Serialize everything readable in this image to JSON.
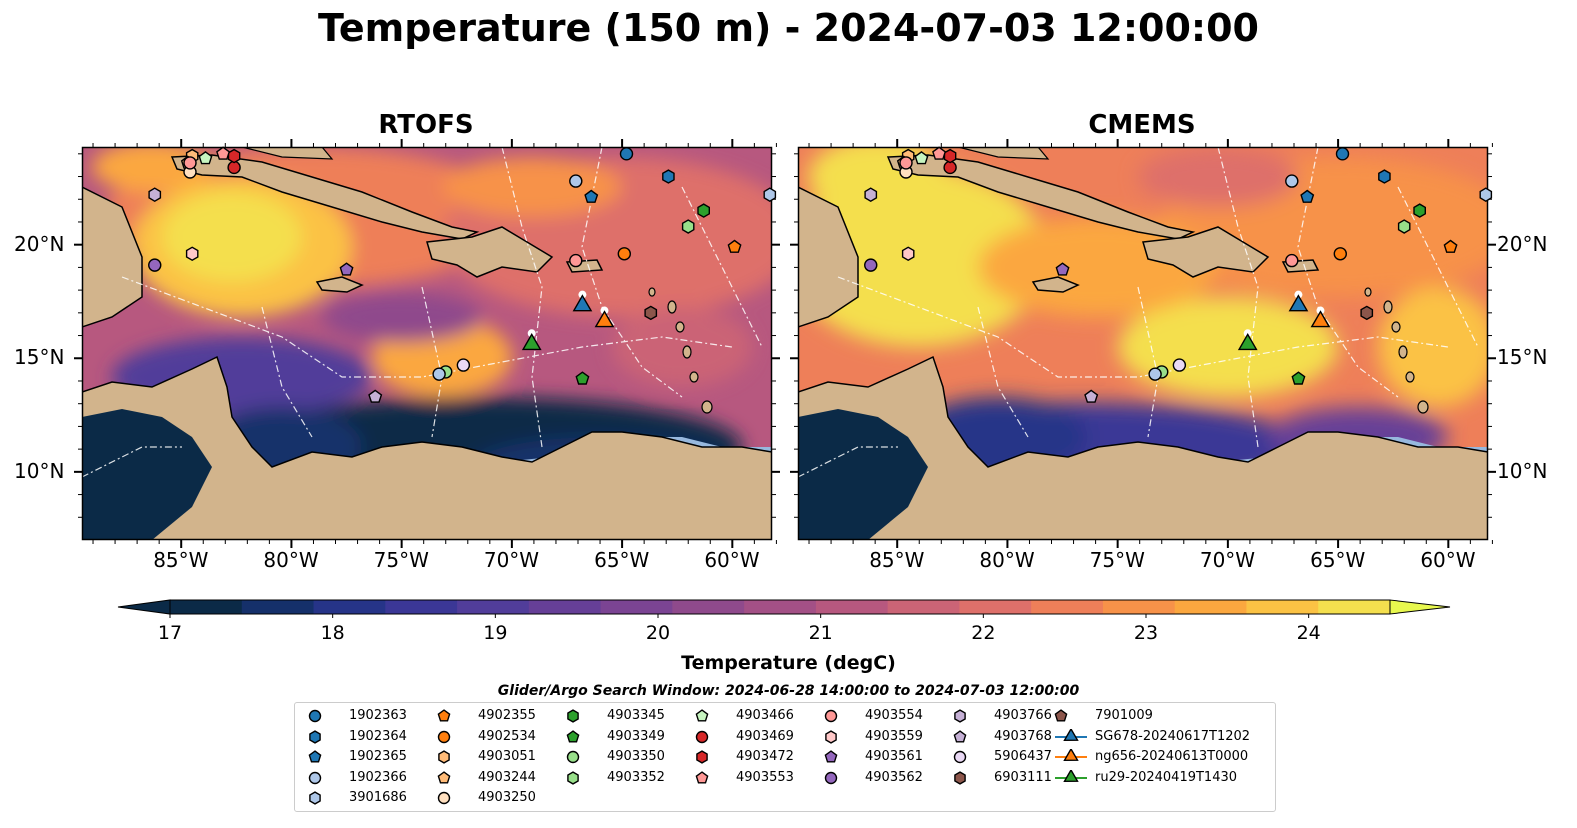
{
  "title": "Temperature (150 m) - 2024-07-03 12:00:00",
  "panels": [
    {
      "title": "RTOFS"
    },
    {
      "title": "CMEMS"
    }
  ],
  "x_ticks": [
    "85°W",
    "80°W",
    "75°W",
    "70°W",
    "65°W",
    "60°W"
  ],
  "y_ticks": [
    "20°N",
    "15°N",
    "10°N"
  ],
  "colorbar": {
    "label": "Temperature (degC)",
    "ticks": [
      "17",
      "18",
      "19",
      "20",
      "21",
      "22",
      "23",
      "24"
    ],
    "min": 17,
    "max": 24.5,
    "step": 0.5,
    "colors": [
      "#0b2a47",
      "#15306a",
      "#263488",
      "#3b3796",
      "#513d9a",
      "#663f97",
      "#7b4493",
      "#8f4a8c",
      "#a35086",
      "#b7587f",
      "#cb6476",
      "#de706a",
      "#ee7f59",
      "#f79249",
      "#fba73f",
      "#fbc244",
      "#f4df4e"
    ],
    "over_color": "#e8f84e",
    "under_color": "#0b2a47"
  },
  "search_window": "Glider/Argo Search Window: 2024-06-28 14:00:00 to 2024-07-03 12:00:00",
  "legend": {
    "columns": [
      [
        {
          "label": "1902363",
          "marker": "circle",
          "color": "#1f77b4"
        },
        {
          "label": "1902364",
          "marker": "hexagon",
          "color": "#1f77b4"
        },
        {
          "label": "1902365",
          "marker": "pentagon",
          "color": "#1f77b4"
        },
        {
          "label": "1902366",
          "marker": "circle",
          "color": "#aec7e8"
        },
        {
          "label": "3901686",
          "marker": "hexagon",
          "color": "#aec7e8"
        }
      ],
      [
        {
          "label": "4902355",
          "marker": "pentagon",
          "color": "#ff7f0e"
        },
        {
          "label": "4902534",
          "marker": "circle",
          "color": "#ff7f0e"
        },
        {
          "label": "4903051",
          "marker": "hexagon",
          "color": "#ffbb78"
        },
        {
          "label": "4903244",
          "marker": "pentagon",
          "color": "#ffbb78"
        },
        {
          "label": "4903250",
          "marker": "circle",
          "color": "#ffe0c0"
        }
      ],
      [
        {
          "label": "4903345",
          "marker": "hexagon",
          "color": "#2ca02c"
        },
        {
          "label": "4903349",
          "marker": "pentagon",
          "color": "#2ca02c"
        },
        {
          "label": "4903350",
          "marker": "circle",
          "color": "#98df8a"
        },
        {
          "label": "4903352",
          "marker": "hexagon",
          "color": "#98df8a"
        }
      ],
      [
        {
          "label": "4903466",
          "marker": "pentagon",
          "color": "#c7f5c0"
        },
        {
          "label": "4903469",
          "marker": "circle",
          "color": "#d62728"
        },
        {
          "label": "4903472",
          "marker": "hexagon",
          "color": "#d62728"
        },
        {
          "label": "4903553",
          "marker": "pentagon",
          "color": "#ff9896"
        }
      ],
      [
        {
          "label": "4903554",
          "marker": "circle",
          "color": "#ff9896"
        },
        {
          "label": "4903559",
          "marker": "hexagon",
          "color": "#ffc8c8"
        },
        {
          "label": "4903561",
          "marker": "pentagon",
          "color": "#9467bd"
        },
        {
          "label": "4903562",
          "marker": "circle",
          "color": "#9467bd"
        }
      ],
      [
        {
          "label": "4903766",
          "marker": "hexagon",
          "color": "#c5b0d5"
        },
        {
          "label": "4903768",
          "marker": "pentagon",
          "color": "#c5b0d5"
        },
        {
          "label": "5906437",
          "marker": "circle",
          "color": "#ead9f5"
        },
        {
          "label": "6903111",
          "marker": "hexagon",
          "color": "#8c564b"
        }
      ],
      [
        {
          "label": "7901009",
          "marker": "pentagon",
          "color": "#8c564b"
        },
        {
          "label": "SG678-20240617T1202",
          "marker": "triangle",
          "color": "#1f77b4"
        },
        {
          "label": "ng656-20240613T0000",
          "marker": "triangle",
          "color": "#ff7f0e"
        },
        {
          "label": "ru29-20240419T1430",
          "marker": "triangle",
          "color": "#2ca02c"
        }
      ]
    ]
  }
}
